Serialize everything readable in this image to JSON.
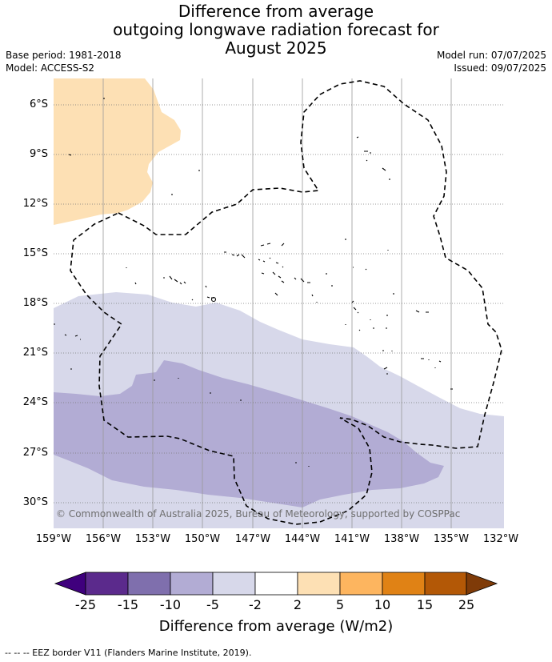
{
  "title": {
    "line1": "Difference from average",
    "line2": "outgoing longwave radiation forecast for",
    "line3": "August 2025"
  },
  "meta": {
    "base_period": "Base period: 1981-2018",
    "model": "Model: ACCESS-S2",
    "model_run": "Model run: 07/07/2025",
    "issued": "Issued: 09/07/2025"
  },
  "map": {
    "lat_labels": [
      "6°S",
      "9°S",
      "12°S",
      "15°S",
      "18°S",
      "21°S",
      "24°S",
      "27°S",
      "30°S"
    ],
    "lon_labels": [
      "159°W",
      "156°W",
      "153°W",
      "150°W",
      "147°W",
      "144°W",
      "141°W",
      "138°W",
      "135°W",
      "132°W"
    ],
    "copyright": "© Commonwealth of Australia 2025, Bureau of Meteorology, supported by COSPPac",
    "colors": {
      "light_orange": "#fde0b4",
      "light_purple": "#d7d8ea",
      "mid_purple": "#b2acd4"
    }
  },
  "colorbar": {
    "ticks": [
      "-25",
      "-15",
      "-10",
      "-5",
      "-2",
      "2",
      "5",
      "10",
      "15",
      "25"
    ],
    "colors": [
      "#3f007d",
      "#5b2a8c",
      "#7f6fad",
      "#b2acd4",
      "#d7d8ea",
      "#ffffff",
      "#fde0b4",
      "#fdb55f",
      "#e08215",
      "#b35806",
      "#7f3b08"
    ],
    "title": "Difference from average (W/m2)"
  },
  "footnote": "-- -- -- EEZ border V11 (Flanders Marine Institute, 2019)."
}
